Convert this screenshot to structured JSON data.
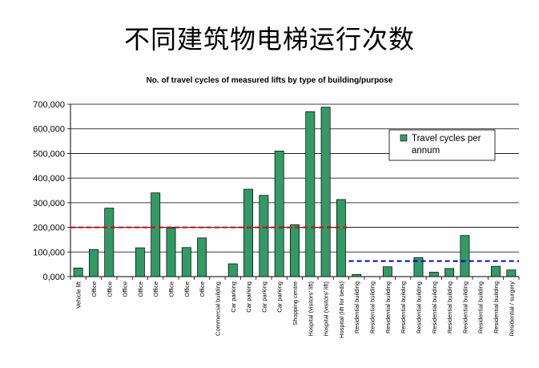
{
  "slide": {
    "title": "不同建筑物电梯运行次数"
  },
  "chart_data": {
    "type": "bar",
    "title": "No. of travel cycles of measured lifts by type of building/purpose",
    "xlabel": "",
    "ylabel": "",
    "ylim": [
      0,
      700000
    ],
    "yticks": [
      "0,000",
      "100,000",
      "200,000",
      "300,000",
      "400,000",
      "500,000",
      "600,000",
      "700,000"
    ],
    "grid": true,
    "legend_position": "top-right",
    "categories": [
      "Vehicle lift",
      "Office",
      "Office",
      "Office",
      "Office",
      "Office",
      "Office",
      "Office",
      "Office",
      "Commercial building",
      "Car parking",
      "Car parking",
      "Car parking",
      "Car parking",
      "Shopping centre",
      "Hospital (visitors' lift)",
      "Hospital (visitors' lift)",
      "Hospital (lift for beds)",
      "Residential building",
      "Residential building",
      "Residential building",
      "Residential building",
      "Residential building",
      "Residential building",
      "Residential building",
      "Residential building",
      "Residential building",
      "Residential building",
      "Residential / surgery"
    ],
    "series": [
      {
        "name": "Travel cycles per annum",
        "color": "#339966",
        "values": [
          35000,
          110000,
          278000,
          0,
          117000,
          340000,
          197000,
          118000,
          157000,
          0,
          52000,
          355000,
          330000,
          510000,
          211000,
          670000,
          688000,
          313000,
          9000,
          0,
          40000,
          0,
          77000,
          18000,
          33000,
          167000,
          0,
          42000,
          27000
        ]
      }
    ],
    "reference_lines": [
      {
        "value": 200000,
        "from_index": 0,
        "to_index": 17,
        "color": "#dd0000"
      },
      {
        "value": 63000,
        "from_index": 18,
        "to_index": 28,
        "color": "#0000cc"
      }
    ]
  }
}
